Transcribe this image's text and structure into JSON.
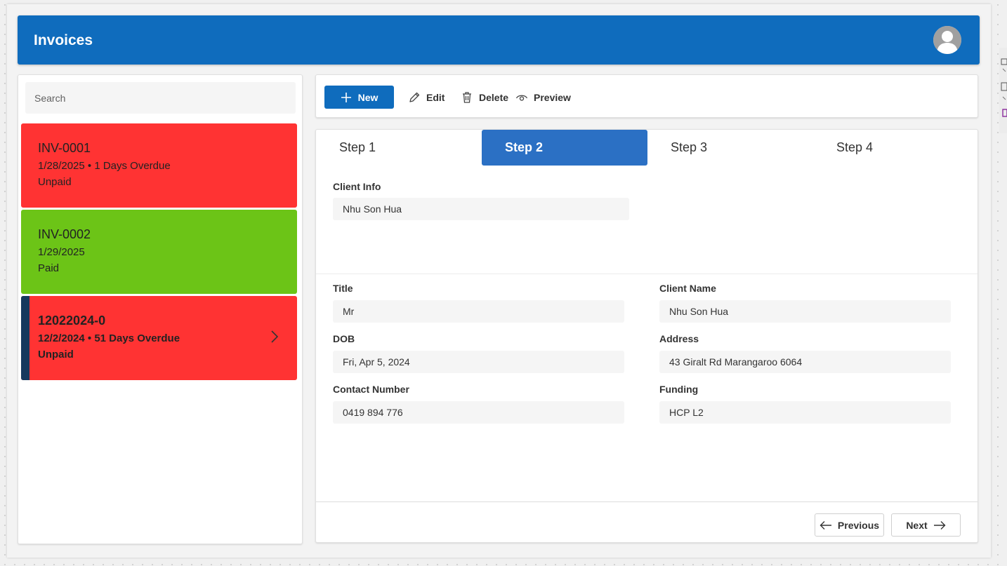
{
  "header": {
    "title": "Invoices"
  },
  "search": {
    "placeholder": "Search"
  },
  "invoices": [
    {
      "number": "INV-0001",
      "date_line": "1/28/2025 • 1 Days Overdue",
      "status": "Unpaid",
      "color": "#ff3333",
      "selected": false
    },
    {
      "number": "INV-0002",
      "date_line": "1/29/2025",
      "status": "Paid",
      "color": "#6cc417",
      "selected": false
    },
    {
      "number": "12022024-0",
      "date_line": "12/2/2024 • 51 Days Overdue",
      "status": "Unpaid",
      "color": "#ff3333",
      "selected": true
    }
  ],
  "toolbar": {
    "new_label": "New",
    "edit_label": "Edit",
    "delete_label": "Delete",
    "preview_label": "Preview"
  },
  "steps": [
    "Step 1",
    "Step 2",
    "Step 3",
    "Step 4"
  ],
  "active_step": "Step 2",
  "client_info": {
    "label": "Client Info",
    "value": "Nhu Son Hua"
  },
  "fields": {
    "title": {
      "label": "Title",
      "value": "Mr"
    },
    "client_name": {
      "label": "Client Name",
      "value": "Nhu Son Hua"
    },
    "dob": {
      "label": "DOB",
      "value": "Fri, Apr 5, 2024"
    },
    "address": {
      "label": "Address",
      "value": "43 Giralt Rd Marangaroo 6064"
    },
    "contact_number": {
      "label": "Contact Number",
      "value": "0419 894 776"
    },
    "funding": {
      "label": "Funding",
      "value": "HCP L2"
    }
  },
  "nav": {
    "previous_label": "Previous",
    "next_label": "Next"
  },
  "colors": {
    "brand": "#0f6cbd",
    "active_step": "#2b70c4",
    "overdue": "#ff3333",
    "paid": "#6cc417",
    "selection_bar": "#16395e"
  }
}
